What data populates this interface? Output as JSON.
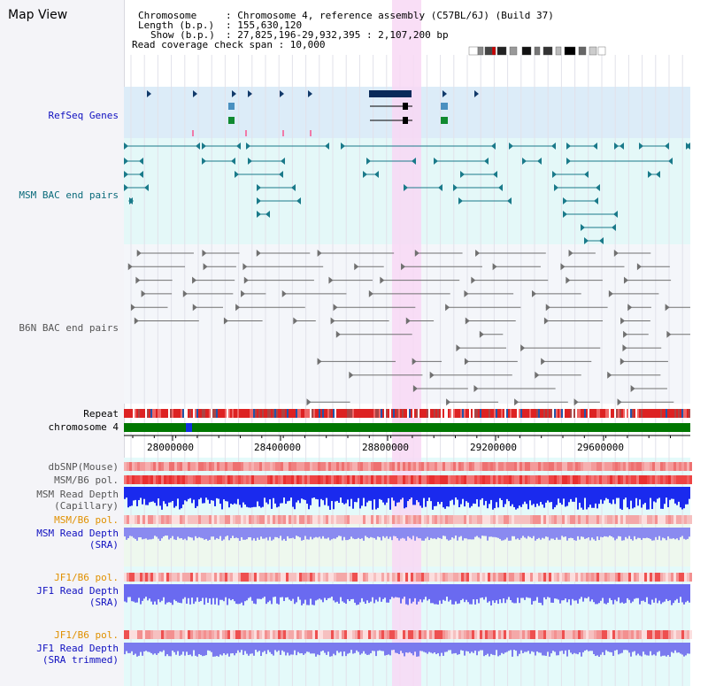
{
  "window": {
    "title": "Map View"
  },
  "header": {
    "chromosome_label": "Chromosome",
    "chromosome_value": ": Chromosome 4, reference assembly (C57BL/6J) (Build 37)",
    "length_label": "Length (b.p.)",
    "length_value": ": 155,630,120",
    "show_label": "Show (b.p.)",
    "show_value": ": 27,825,196-29,932,395 : 2,107,200 bp",
    "coverage_text": "Read coverage check span : 10,000"
  },
  "tracks": {
    "refseq": "RefSeq Genes",
    "msm_bac": "MSM BAC end pairs",
    "b6n_bac": "B6N BAC end pairs",
    "repeat": "Repeat",
    "chromosome": "chromosome 4",
    "dbsnp": "dbSNP(Mouse)",
    "msm_b6_pol": "MSM/B6 pol.",
    "msm_depth_cap_1": "MSM Read Depth",
    "msm_depth_cap_2": "(Capillary)",
    "msm_b6_pol_2": "MSM/B6 pol.",
    "msm_depth_sra_1": "MSM Read Depth",
    "msm_depth_sra_2": "(SRA)",
    "jf1_b6_pol": "JF1/B6 pol.",
    "jf1_depth_sra_1": "JF1 Read Depth",
    "jf1_depth_sra_2": "(SRA)",
    "jf1_b6_pol_2": "JF1/B6 pol.",
    "jf1_depth_trim_1": "JF1 Read Depth",
    "jf1_depth_trim_2": "(SRA trimmed)"
  },
  "axis": {
    "ticks": [
      "28000000",
      "28400000",
      "28800000",
      "29200000",
      "29600000"
    ]
  },
  "colors": {
    "refseq_band": "#dcecf8",
    "bac_band": "#e4f8f8",
    "b6n_band": "#f4f6fa",
    "highlight": "#f8d8f4",
    "chromosome_bar": "#007700",
    "gene_fill": "#0a2a5a",
    "msm_bac_color": "#1a7a8a",
    "b6n_bac_color": "#707070"
  }
}
